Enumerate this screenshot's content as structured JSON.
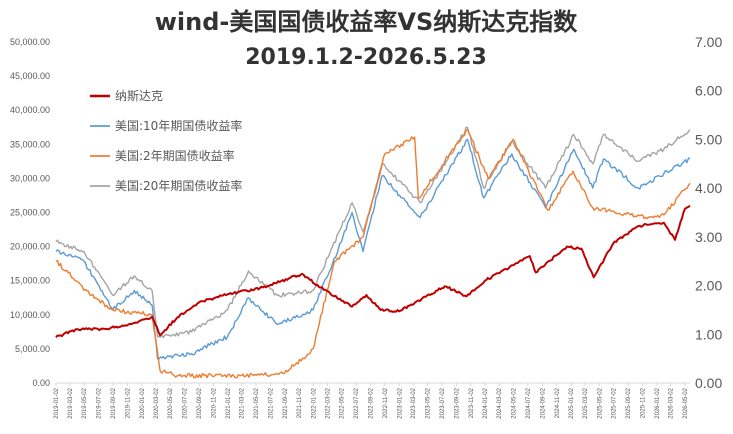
{
  "chart_data": {
    "type": "line",
    "title": "wind-美国国债收益率VS纳斯达克指数",
    "subtitle": "2019.1.2-2026.5.23",
    "legend_position": "top-left",
    "grid": false,
    "y_left": {
      "min": 0,
      "max": 50000,
      "ticks": [
        "0.00",
        "5,000.00",
        "10,000.00",
        "15,000.00",
        "20,000.00",
        "25,000.00",
        "30,000.00",
        "35,000.00",
        "40,000.00",
        "45,000.00",
        "50,000.00"
      ]
    },
    "y_right": {
      "min": 0,
      "max": 7,
      "ticks": [
        "0.00",
        "1.00",
        "2.00",
        "3.00",
        "4.00",
        "5.00",
        "6.00",
        "7.00"
      ]
    },
    "x_range": [
      "2019-01-02",
      "2026-05-23"
    ],
    "x_ticks": [
      "2019-01-02",
      "2019-03-02",
      "2019-05-02",
      "2019-07-02",
      "2019-09-02",
      "2019-11-02",
      "2020-01-02",
      "2020-03-02",
      "2020-05-02",
      "2020-07-02",
      "2020-09-02",
      "2020-11-02",
      "2021-01-02",
      "2021-03-02",
      "2021-05-02",
      "2021-07-02",
      "2021-09-02",
      "2021-11-02",
      "2022-01-02",
      "2022-03-02",
      "2022-05-02",
      "2022-07-02",
      "2022-09-02",
      "2022-11-02",
      "2023-01-02",
      "2023-03-02",
      "2023-05-02",
      "2023-07-02",
      "2023-09-02",
      "2023-11-02",
      "2024-01-02",
      "2024-03-02",
      "2024-05-02",
      "2024-07-02",
      "2024-09-02",
      "2024-11-02",
      "2025-01-02",
      "2025-03-02",
      "2025-05-02",
      "2025-07-02",
      "2025-09-02",
      "2025-11-02",
      "2026-01-02",
      "2026-03-02",
      "2026-05-02"
    ],
    "series": [
      {
        "name": "纳斯达克",
        "axis": "left",
        "color": "#C00000",
        "points": [
          [
            "2019-01-02",
            6700
          ],
          [
            "2019-04-01",
            7900
          ],
          [
            "2019-08-01",
            7900
          ],
          [
            "2019-12-01",
            8800
          ],
          [
            "2020-02-15",
            9700
          ],
          [
            "2020-03-20",
            7000
          ],
          [
            "2020-06-01",
            9600
          ],
          [
            "2020-09-01",
            11800
          ],
          [
            "2021-01-01",
            13000
          ],
          [
            "2021-06-01",
            14000
          ],
          [
            "2021-11-15",
            16000
          ],
          [
            "2022-02-01",
            14000
          ],
          [
            "2022-06-15",
            11200
          ],
          [
            "2022-08-15",
            12900
          ],
          [
            "2022-10-15",
            10700
          ],
          [
            "2023-01-01",
            10500
          ],
          [
            "2023-07-15",
            14200
          ],
          [
            "2023-10-15",
            12700
          ],
          [
            "2024-01-01",
            15000
          ],
          [
            "2024-07-10",
            18600
          ],
          [
            "2024-08-05",
            16200
          ],
          [
            "2024-12-15",
            20000
          ],
          [
            "2025-02-15",
            19700
          ],
          [
            "2025-04-08",
            15500
          ],
          [
            "2025-07-01",
            20500
          ],
          [
            "2025-10-15",
            23000
          ],
          [
            "2026-02-01",
            23500
          ],
          [
            "2026-03-20",
            21000
          ],
          [
            "2026-05-01",
            25500
          ],
          [
            "2026-05-23",
            26000
          ]
        ]
      },
      {
        "name": "美国:10年期国债收益率",
        "axis": "right",
        "color": "#5B9BD5",
        "points": [
          [
            "2019-01-02",
            2.7
          ],
          [
            "2019-05-01",
            2.5
          ],
          [
            "2019-09-01",
            1.5
          ],
          [
            "2019-12-01",
            1.9
          ],
          [
            "2020-02-15",
            1.6
          ],
          [
            "2020-03-09",
            0.5
          ],
          [
            "2020-08-01",
            0.6
          ],
          [
            "2021-01-01",
            0.95
          ],
          [
            "2021-03-31",
            1.75
          ],
          [
            "2021-08-01",
            1.2
          ],
          [
            "2021-12-31",
            1.5
          ],
          [
            "2022-05-01",
            2.9
          ],
          [
            "2022-06-15",
            3.5
          ],
          [
            "2022-08-01",
            2.7
          ],
          [
            "2022-10-20",
            4.25
          ],
          [
            "2023-04-01",
            3.4
          ],
          [
            "2023-10-19",
            5.0
          ],
          [
            "2023-12-27",
            3.8
          ],
          [
            "2024-04-25",
            4.7
          ],
          [
            "2024-09-15",
            3.6
          ],
          [
            "2025-01-14",
            4.8
          ],
          [
            "2025-04-04",
            4.0
          ],
          [
            "2025-05-20",
            4.6
          ],
          [
            "2025-10-15",
            4.0
          ],
          [
            "2026-02-01",
            4.3
          ],
          [
            "2026-05-23",
            4.6
          ]
        ]
      },
      {
        "name": "美国:2年期国债收益率",
        "axis": "right",
        "color": "#ED7D31",
        "points": [
          [
            "2019-01-02",
            2.5
          ],
          [
            "2019-06-01",
            1.8
          ],
          [
            "2019-09-01",
            1.5
          ],
          [
            "2020-02-15",
            1.4
          ],
          [
            "2020-03-20",
            0.25
          ],
          [
            "2020-06-01",
            0.15
          ],
          [
            "2021-03-01",
            0.15
          ],
          [
            "2021-09-01",
            0.2
          ],
          [
            "2021-12-31",
            0.7
          ],
          [
            "2022-04-01",
            2.5
          ],
          [
            "2022-08-01",
            3.0
          ],
          [
            "2022-11-01",
            4.7
          ],
          [
            "2023-03-08",
            5.05
          ],
          [
            "2023-03-24",
            3.8
          ],
          [
            "2023-10-19",
            5.2
          ],
          [
            "2024-01-15",
            4.2
          ],
          [
            "2024-04-30",
            5.0
          ],
          [
            "2024-09-25",
            3.55
          ],
          [
            "2025-01-10",
            4.35
          ],
          [
            "2025-04-04",
            3.6
          ],
          [
            "2025-11-15",
            3.4
          ],
          [
            "2026-02-01",
            3.45
          ],
          [
            "2026-05-23",
            4.1
          ]
        ]
      },
      {
        "name": "美国:20年期国债收益率",
        "axis": "right",
        "color": "#A5A5A5",
        "points": [
          [
            "2019-01-02",
            2.9
          ],
          [
            "2019-05-01",
            2.7
          ],
          [
            "2019-09-01",
            1.8
          ],
          [
            "2019-12-01",
            2.2
          ],
          [
            "2020-02-15",
            1.9
          ],
          [
            "2020-03-09",
            0.95
          ],
          [
            "2020-08-01",
            1.05
          ],
          [
            "2021-01-01",
            1.5
          ],
          [
            "2021-03-31",
            2.3
          ],
          [
            "2021-08-01",
            1.8
          ],
          [
            "2021-12-31",
            1.9
          ],
          [
            "2022-05-01",
            3.2
          ],
          [
            "2022-06-15",
            3.7
          ],
          [
            "2022-08-01",
            3.1
          ],
          [
            "2022-10-20",
            4.5
          ],
          [
            "2023-04-01",
            3.7
          ],
          [
            "2023-10-19",
            5.25
          ],
          [
            "2023-12-27",
            4.0
          ],
          [
            "2024-04-25",
            4.95
          ],
          [
            "2024-09-15",
            4.0
          ],
          [
            "2025-01-14",
            5.1
          ],
          [
            "2025-04-04",
            4.5
          ],
          [
            "2025-05-20",
            5.1
          ],
          [
            "2025-10-15",
            4.55
          ],
          [
            "2026-02-01",
            4.8
          ],
          [
            "2026-05-23",
            5.2
          ]
        ]
      }
    ]
  }
}
